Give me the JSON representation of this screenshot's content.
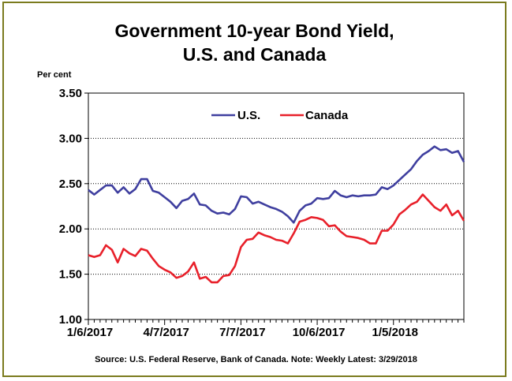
{
  "chart_data": {
    "type": "line",
    "title_line1": "Government 10-year Bond Yield,",
    "title_line2": "U.S. and Canada",
    "ylabel": "Per cent",
    "ylim": [
      1.0,
      3.5
    ],
    "yticks": [
      "1.00",
      "1.50",
      "2.00",
      "2.50",
      "3.00",
      "3.50"
    ],
    "xtick_labels": [
      "1/6/2017",
      "4/7/2017",
      "7/7/2017",
      "10/6/2017",
      "1/5/2018"
    ],
    "xtick_index": [
      0,
      13,
      26,
      39,
      52
    ],
    "grid": true,
    "legend_position": "top",
    "source": "Source: U.S. Federal Reserve, Bank of Canada.  Note: Weekly  Latest:  3/29/2018",
    "series": [
      {
        "name": "U.S.",
        "color": "#3f3f9f",
        "values": [
          2.43,
          2.38,
          2.43,
          2.48,
          2.48,
          2.4,
          2.46,
          2.39,
          2.44,
          2.55,
          2.55,
          2.42,
          2.4,
          2.35,
          2.3,
          2.23,
          2.31,
          2.33,
          2.39,
          2.27,
          2.26,
          2.2,
          2.17,
          2.18,
          2.16,
          2.22,
          2.36,
          2.35,
          2.28,
          2.3,
          2.27,
          2.24,
          2.22,
          2.19,
          2.14,
          2.07,
          2.2,
          2.26,
          2.28,
          2.34,
          2.33,
          2.34,
          2.42,
          2.37,
          2.35,
          2.37,
          2.36,
          2.37,
          2.37,
          2.38,
          2.46,
          2.44,
          2.48,
          2.54,
          2.6,
          2.66,
          2.75,
          2.82,
          2.86,
          2.91,
          2.87,
          2.88,
          2.84,
          2.86,
          2.74
        ]
      },
      {
        "name": "Canada",
        "color": "#e8202a",
        "values": [
          1.71,
          1.69,
          1.71,
          1.82,
          1.77,
          1.63,
          1.78,
          1.73,
          1.7,
          1.78,
          1.76,
          1.67,
          1.59,
          1.55,
          1.52,
          1.46,
          1.48,
          1.53,
          1.63,
          1.45,
          1.47,
          1.41,
          1.41,
          1.48,
          1.49,
          1.59,
          1.8,
          1.88,
          1.89,
          1.96,
          1.93,
          1.91,
          1.88,
          1.87,
          1.84,
          1.95,
          2.08,
          2.1,
          2.13,
          2.12,
          2.1,
          2.03,
          2.04,
          1.97,
          1.92,
          1.91,
          1.9,
          1.88,
          1.84,
          1.84,
          1.98,
          1.98,
          2.05,
          2.16,
          2.21,
          2.27,
          2.3,
          2.38,
          2.31,
          2.24,
          2.2,
          2.27,
          2.15,
          2.2,
          2.09
        ]
      }
    ]
  }
}
